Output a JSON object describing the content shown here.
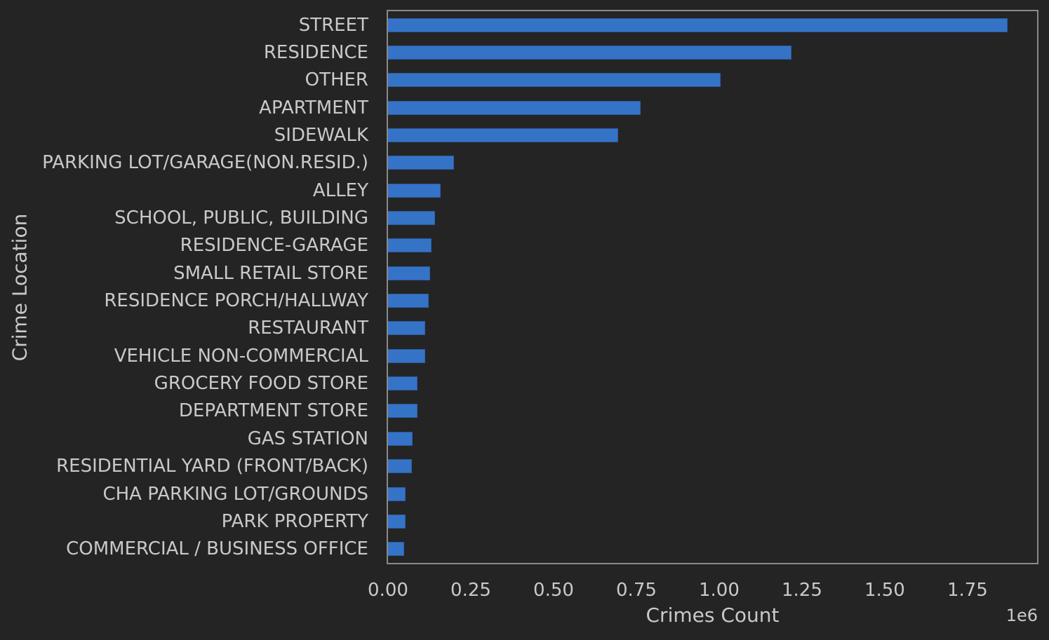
{
  "colors": {
    "background": "#242424",
    "bar_fill": "#3573c7",
    "bar_edge": "#2b5ca3",
    "spine": "#8a8a8a",
    "text": "#c9c9c9"
  },
  "chart_data": {
    "type": "bar",
    "orientation": "horizontal",
    "xlabel": "Crimes Count",
    "ylabel": "Crime Location",
    "x_offset_label": "1e6",
    "xlim": [
      0,
      1960000
    ],
    "grid": false,
    "legend": false,
    "x_ticks": [
      0,
      250000,
      500000,
      750000,
      1000000,
      1250000,
      1500000,
      1750000
    ],
    "x_tick_labels": [
      "0.00",
      "0.25",
      "0.50",
      "0.75",
      "1.00",
      "1.25",
      "1.50",
      "1.75"
    ],
    "categories": [
      "STREET",
      "RESIDENCE",
      "OTHER",
      "APARTMENT",
      "SIDEWALK",
      "PARKING LOT/GARAGE(NON.RESID.)",
      "ALLEY",
      "SCHOOL, PUBLIC, BUILDING",
      "RESIDENCE-GARAGE",
      "SMALL RETAIL STORE",
      "RESIDENCE PORCH/HALLWAY",
      "RESTAURANT",
      "VEHICLE NON-COMMERCIAL",
      "GROCERY FOOD STORE",
      "DEPARTMENT STORE",
      "GAS STATION",
      "RESIDENTIAL YARD (FRONT/BACK)",
      "CHA PARKING LOT/GROUNDS",
      "PARK PROPERTY",
      "COMMERCIAL / BUSINESS OFFICE"
    ],
    "values": [
      1870000,
      1219000,
      1005000,
      763000,
      696000,
      199000,
      158000,
      143000,
      132000,
      128000,
      122000,
      113000,
      112000,
      90000,
      88000,
      75000,
      73000,
      54000,
      53000,
      49000
    ]
  }
}
